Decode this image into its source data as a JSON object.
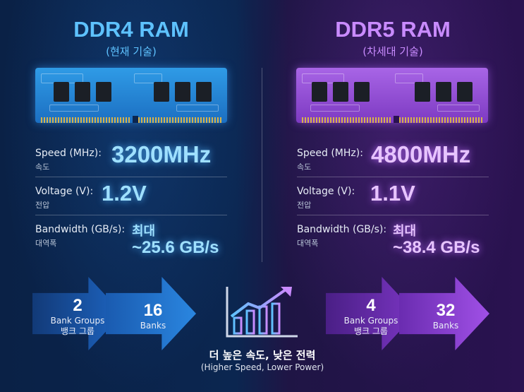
{
  "left": {
    "title": "DDR4 RAM",
    "subtitle": "(현재 기술)",
    "specs": [
      {
        "label": "Speed (MHz):",
        "label_ko": "속도",
        "value": "3200MHz"
      },
      {
        "label": "Voltage (V):",
        "label_ko": "전압",
        "value": "1.2V"
      },
      {
        "label": "Bandwidth (GB/s):",
        "label_ko": "대역폭",
        "value_line1": "최대",
        "value_line2": "~25.6 GB/s"
      }
    ],
    "arrows": [
      {
        "number": "2",
        "label": "Bank Groups",
        "label_ko": "뱅크 그룹"
      },
      {
        "number": "16",
        "label": "Banks"
      }
    ],
    "accent": "#5ec2ff"
  },
  "right": {
    "title": "DDR5 RAM",
    "subtitle": "(차세대 기술)",
    "specs": [
      {
        "label": "Speed (MHz):",
        "label_ko": "속도",
        "value": "4800MHz"
      },
      {
        "label": "Voltage (V):",
        "label_ko": "전압",
        "value": "1.1V"
      },
      {
        "label": "Bandwidth (GB/s):",
        "label_ko": "대역폭",
        "value_line1": "최대",
        "value_line2": "~38.4 GB/s"
      }
    ],
    "arrows": [
      {
        "number": "4",
        "label": "Bank Groups",
        "label_ko": "뱅크 그룹"
      },
      {
        "number": "32",
        "label": "Banks"
      }
    ],
    "accent": "#c98bff"
  },
  "center": {
    "icon": "growth-chart-icon",
    "title": "더 높은 속도, 낮은 전력",
    "subtitle": "(Higher Speed, Lower Power)"
  }
}
